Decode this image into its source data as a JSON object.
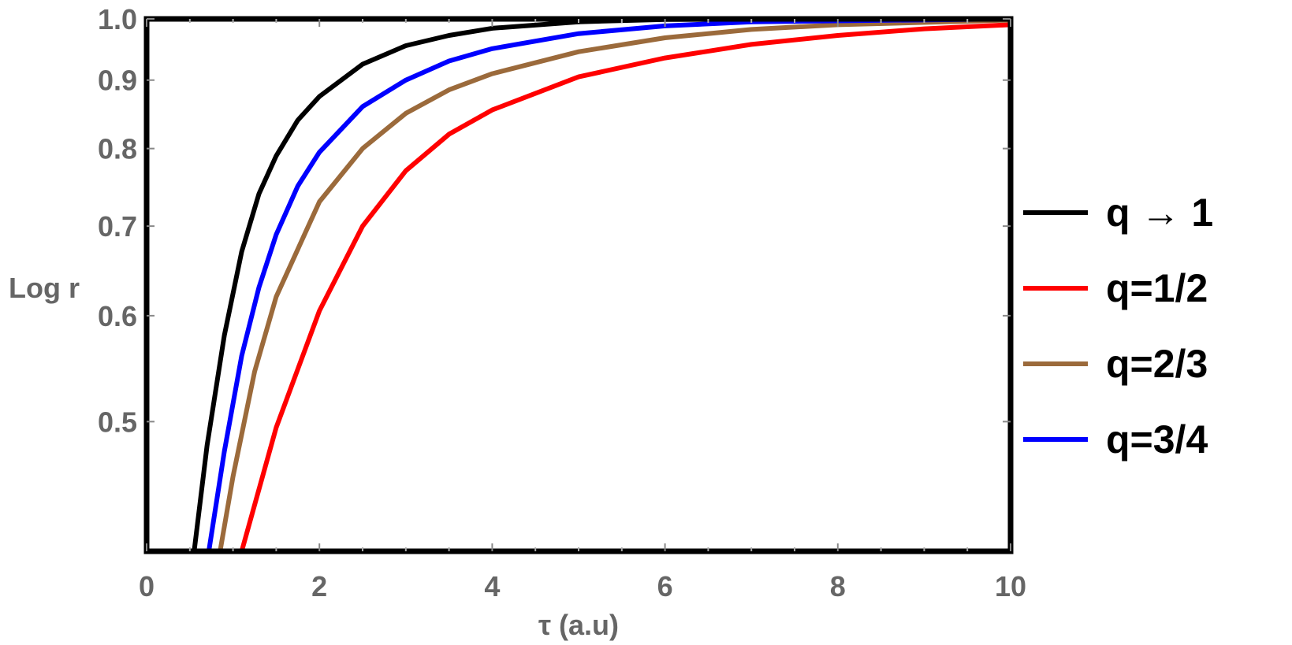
{
  "chart_data": {
    "type": "line",
    "xlabel": "τ (a.u)",
    "ylabel": "Log r",
    "xlim": [
      0,
      10
    ],
    "ylim": [
      0.4,
      1.0
    ],
    "y_scale": "log",
    "x_ticks": [
      "0",
      "2",
      "4",
      "6",
      "8",
      "10"
    ],
    "y_ticks": [
      "0.5",
      "0.6",
      "0.7",
      "0.8",
      "0.9",
      "1.0"
    ],
    "grid": false,
    "frame": true,
    "legend_position": "right",
    "series": [
      {
        "name": "q → 1",
        "color": "#000000",
        "x": [
          0.55,
          0.7,
          0.9,
          1.1,
          1.3,
          1.5,
          1.75,
          2.0,
          2.5,
          3.0,
          3.5,
          4.0,
          5.0,
          6.0,
          10.0
        ],
        "y": [
          0.4,
          0.48,
          0.58,
          0.67,
          0.74,
          0.79,
          0.84,
          0.875,
          0.925,
          0.955,
          0.972,
          0.984,
          0.995,
          0.999,
          1.0
        ]
      },
      {
        "name": "q=1/2",
        "color": "#ff0000",
        "x": [
          1.1,
          1.5,
          2.0,
          2.5,
          3.0,
          3.5,
          4.0,
          5.0,
          6.0,
          7.0,
          8.0,
          9.0,
          10.0
        ],
        "y": [
          0.4,
          0.495,
          0.605,
          0.7,
          0.77,
          0.82,
          0.855,
          0.905,
          0.935,
          0.957,
          0.972,
          0.983,
          0.99
        ]
      },
      {
        "name": "q=2/3",
        "color": "#9b6a3b",
        "x": [
          0.85,
          1.0,
          1.25,
          1.5,
          2.0,
          2.5,
          3.0,
          3.5,
          4.0,
          5.0,
          6.0,
          7.0,
          8.0,
          10.0
        ],
        "y": [
          0.4,
          0.455,
          0.545,
          0.62,
          0.73,
          0.8,
          0.85,
          0.885,
          0.91,
          0.945,
          0.968,
          0.982,
          0.99,
          0.998
        ]
      },
      {
        "name": "q=3/4",
        "color": "#0000ff",
        "x": [
          0.72,
          0.9,
          1.1,
          1.3,
          1.5,
          1.75,
          2.0,
          2.5,
          3.0,
          3.5,
          4.0,
          5.0,
          6.0,
          7.0,
          10.0
        ],
        "y": [
          0.4,
          0.475,
          0.56,
          0.63,
          0.69,
          0.75,
          0.795,
          0.86,
          0.9,
          0.93,
          0.95,
          0.975,
          0.988,
          0.995,
          1.0
        ]
      }
    ]
  }
}
